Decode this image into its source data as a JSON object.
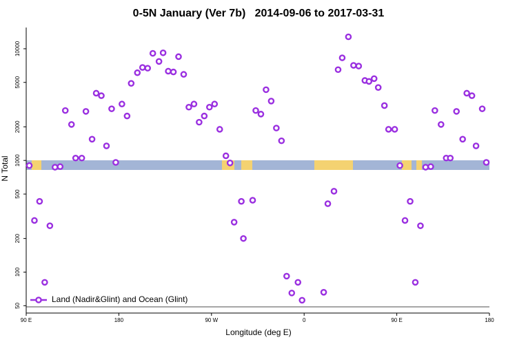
{
  "chart_data": {
    "type": "scatter",
    "title": "0-5N January (Ver 7b)   2014-09-06 to 2017-03-31",
    "x_label": "Longitude (deg E)",
    "y_label": "N Total",
    "log_y": true,
    "xlim": [
      90,
      540
    ],
    "ylim": [
      43,
      15500
    ],
    "xticks": [
      {
        "value": 90,
        "label": "90 E"
      },
      180,
      {
        "value": 270,
        "label": "90 W"
      },
      {
        "value": 360,
        "label": "0"
      },
      {
        "value": 450,
        "label": "90 E"
      },
      {
        "value": 540,
        "label": "180"
      }
    ],
    "yticks": [
      50,
      100,
      200,
      500,
      1000,
      2000,
      5000,
      10000
    ],
    "legend": "bottom-left",
    "x": [
      93,
      98,
      103,
      108,
      113,
      118,
      123,
      128,
      134,
      138,
      144,
      148,
      154,
      158,
      163,
      168,
      173,
      177,
      183,
      188,
      192,
      198,
      203,
      208,
      213,
      219,
      223,
      228,
      233,
      238,
      243,
      248,
      253,
      258,
      263,
      268,
      273,
      278,
      284,
      288,
      292,
      299,
      301,
      310,
      313,
      318,
      323,
      328,
      333,
      338,
      343,
      348,
      354,
      358,
      379,
      383,
      389,
      393,
      397,
      403,
      408,
      413,
      419,
      423,
      428,
      432,
      438,
      442,
      448,
      453,
      458,
      463,
      468,
      473,
      478,
      483,
      487,
      493,
      498,
      502,
      508,
      514,
      518,
      523,
      527,
      533,
      537
    ],
    "series": [
      {
        "name": "Land (Nadir&Glint) and Ocean (Glint)",
        "color": "#9a2fe0",
        "values": [
          900,
          290,
          430,
          81,
          260,
          870,
          880,
          2800,
          2100,
          1050,
          1050,
          2750,
          1550,
          4000,
          3800,
          1350,
          2900,
          960,
          3200,
          2500,
          4900,
          6100,
          6800,
          6700,
          9100,
          7700,
          9200,
          6300,
          6200,
          8500,
          5900,
          3000,
          3200,
          2200,
          2500,
          3000,
          3200,
          1900,
          1100,
          950,
          280,
          430,
          200,
          440,
          2800,
          2600,
          4300,
          3400,
          1950,
          1500,
          92,
          65,
          81,
          56,
          66,
          410,
          530,
          6500,
          8300,
          12800,
          7100,
          7000,
          5200,
          5100,
          5400,
          4500,
          3100,
          1900,
          1900,
          900,
          290,
          430,
          81,
          260,
          870,
          880,
          2800,
          2100,
          1050,
          1050,
          2750,
          1550,
          4000,
          3800,
          1350,
          2900,
          960
        ]
      }
    ]
  }
}
